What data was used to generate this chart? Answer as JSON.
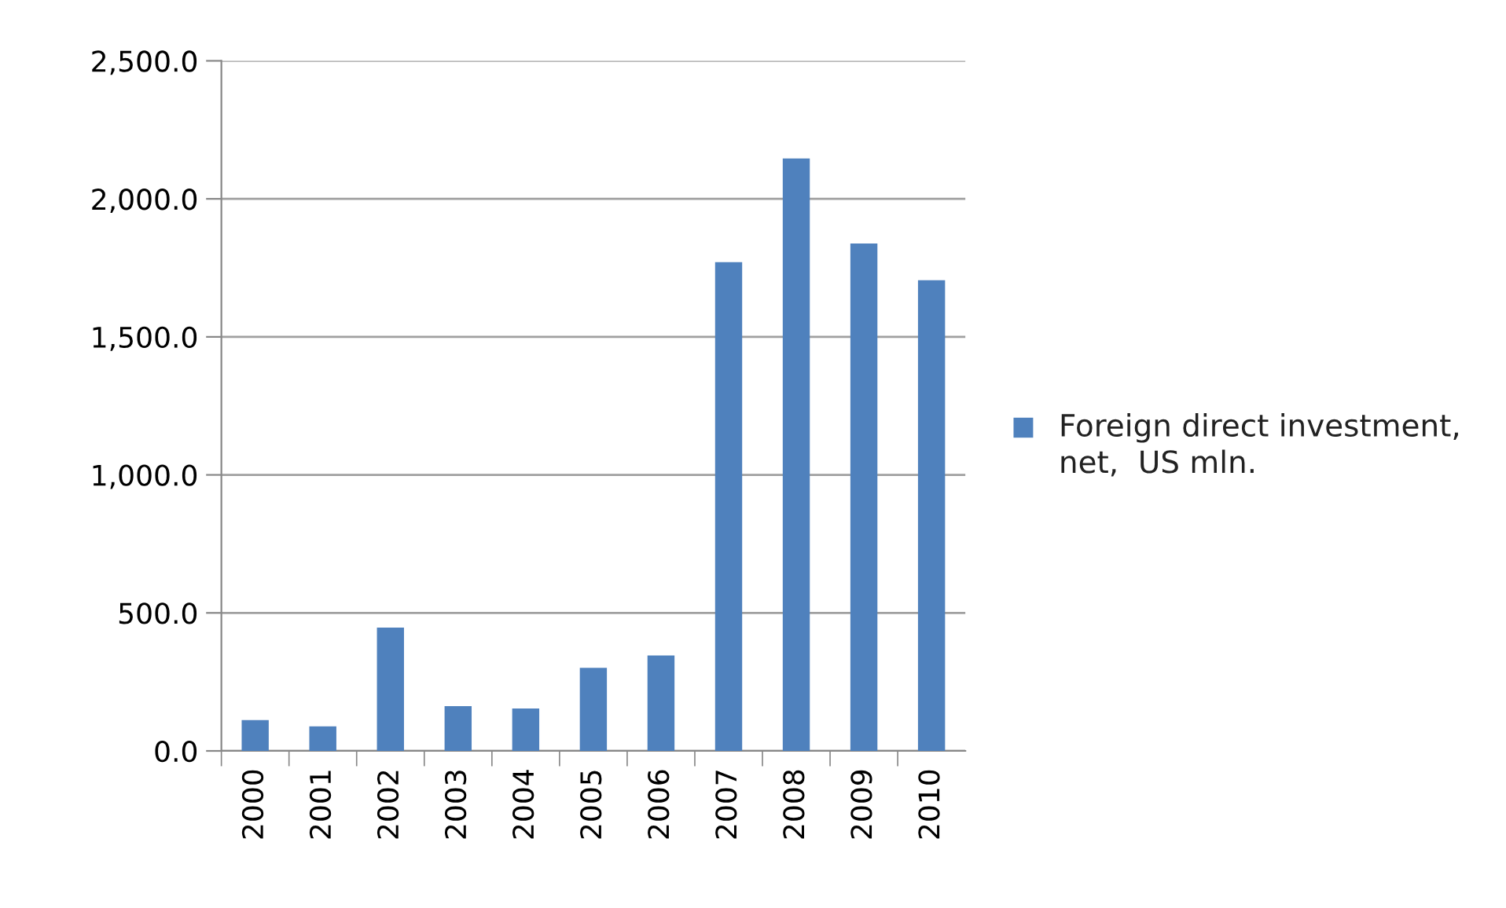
{
  "chart_data": {
    "type": "bar",
    "categories": [
      "2000",
      "2001",
      "2002",
      "2003",
      "2004",
      "2005",
      "2006",
      "2007",
      "2008",
      "2009",
      "2010"
    ],
    "series": [
      {
        "name": "Foreign direct investment, net,  US mln.",
        "color": "#4f81bd",
        "values": [
          112,
          89,
          447,
          162,
          154,
          301,
          346,
          1771,
          2146,
          1838,
          1705
        ]
      }
    ],
    "ylim": [
      0,
      2500
    ],
    "yticks": [
      {
        "value": 0,
        "label": "0.0"
      },
      {
        "value": 500,
        "label": "500.0"
      },
      {
        "value": 1000,
        "label": "1,000.0"
      },
      {
        "value": 1500,
        "label": "1,500.0"
      },
      {
        "value": 2000,
        "label": "2,000.0"
      },
      {
        "value": 2500,
        "label": "2,500.0"
      }
    ],
    "grid": "y",
    "legend": "right"
  }
}
